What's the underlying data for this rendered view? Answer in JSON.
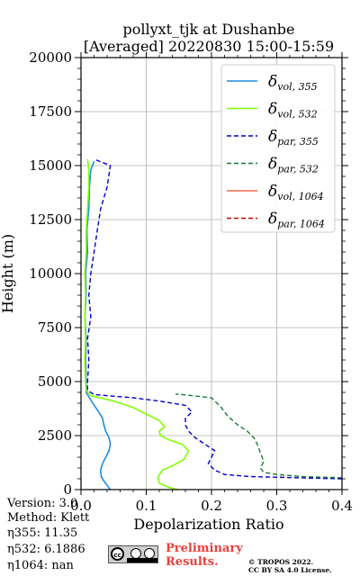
{
  "info": {
    "version": "Version: 3.0",
    "method": "Method: Klett",
    "eta355": "η355:  11.35",
    "eta532": "η532: 6.1886",
    "eta1064": "η1064:    nan"
  },
  "license": {
    "badge_label": "cc",
    "preliminary_line1": "Preliminary",
    "preliminary_line2": "Results.",
    "copyright_line1": "© TROPOS 2022.",
    "copyright_line2": "CC BY SA 4.0 License."
  },
  "chart_data": {
    "type": "line",
    "title": "pollyxt_tjk at Dushanbe",
    "subtitle": "[Averaged] 20220830 15:00-15:59",
    "xlabel": "Depolarization Ratio",
    "ylabel": "Height (m)",
    "xlim": [
      0,
      0.4
    ],
    "ylim": [
      0,
      20000
    ],
    "xticks": [
      0.0,
      0.1,
      0.2,
      0.3,
      0.4
    ],
    "xtick_labels": [
      "0.0",
      "0.1",
      "0.2",
      "0.3",
      "0.4"
    ],
    "yticks": [
      0,
      2500,
      5000,
      7500,
      10000,
      12500,
      15000,
      17500,
      20000
    ],
    "ytick_labels": [
      "0",
      "2500",
      "5000",
      "7500",
      "10000",
      "12500",
      "15000",
      "17500",
      "20000"
    ],
    "grid": true,
    "legend_position": "top-right",
    "series": [
      {
        "name": "δvol,355",
        "color": "#1f8ddf",
        "dash": "solid",
        "points": [
          [
            0.045,
            0
          ],
          [
            0.04,
            200
          ],
          [
            0.035,
            400
          ],
          [
            0.031,
            600
          ],
          [
            0.03,
            900
          ],
          [
            0.033,
            1200
          ],
          [
            0.038,
            1500
          ],
          [
            0.043,
            1800
          ],
          [
            0.045,
            2100
          ],
          [
            0.043,
            2400
          ],
          [
            0.038,
            2700
          ],
          [
            0.035,
            3000
          ],
          [
            0.033,
            3300
          ],
          [
            0.027,
            3600
          ],
          [
            0.018,
            4000
          ],
          [
            0.012,
            4300
          ],
          [
            0.008,
            4500
          ],
          [
            0.008,
            5000
          ],
          [
            0.007,
            6000
          ],
          [
            0.008,
            7000
          ],
          [
            0.006,
            8000
          ],
          [
            0.008,
            9000
          ],
          [
            0.007,
            10000
          ],
          [
            0.01,
            11000
          ],
          [
            0.009,
            12000
          ],
          [
            0.012,
            13000
          ],
          [
            0.013,
            14000
          ],
          [
            0.015,
            14800
          ],
          [
            0.02,
            15200
          ]
        ]
      },
      {
        "name": "δvol,532",
        "color": "#7fff00",
        "dash": "solid",
        "points": [
          [
            0.148,
            0
          ],
          [
            0.135,
            100
          ],
          [
            0.12,
            300
          ],
          [
            0.118,
            600
          ],
          [
            0.125,
            900
          ],
          [
            0.14,
            1100
          ],
          [
            0.158,
            1400
          ],
          [
            0.165,
            1800
          ],
          [
            0.155,
            2100
          ],
          [
            0.135,
            2300
          ],
          [
            0.122,
            2500
          ],
          [
            0.12,
            2700
          ],
          [
            0.128,
            2900
          ],
          [
            0.12,
            3200
          ],
          [
            0.1,
            3500
          ],
          [
            0.08,
            3800
          ],
          [
            0.05,
            4100
          ],
          [
            0.015,
            4350
          ],
          [
            0.008,
            4600
          ],
          [
            0.007,
            5000
          ],
          [
            0.006,
            6000
          ],
          [
            0.007,
            7000
          ],
          [
            0.006,
            8000
          ],
          [
            0.007,
            9000
          ],
          [
            0.006,
            10000
          ],
          [
            0.008,
            11000
          ],
          [
            0.008,
            12000
          ],
          [
            0.01,
            13000
          ],
          [
            0.012,
            14000
          ],
          [
            0.012,
            14800
          ],
          [
            0.01,
            15300
          ]
        ]
      },
      {
        "name": "δpar,355",
        "color": "#0000cc",
        "dash": "5,3",
        "points": [
          [
            0.4,
            500
          ],
          [
            0.33,
            550
          ],
          [
            0.26,
            600
          ],
          [
            0.22,
            700
          ],
          [
            0.205,
            900
          ],
          [
            0.195,
            1200
          ],
          [
            0.2,
            1500
          ],
          [
            0.205,
            1800
          ],
          [
            0.19,
            2100
          ],
          [
            0.175,
            2400
          ],
          [
            0.165,
            2700
          ],
          [
            0.16,
            3000
          ],
          [
            0.16,
            3300
          ],
          [
            0.17,
            3600
          ],
          [
            0.16,
            3900
          ],
          [
            0.12,
            4100
          ],
          [
            0.08,
            4250
          ],
          [
            0.02,
            4400
          ],
          [
            0.01,
            4600
          ],
          [
            0.01,
            5000
          ],
          [
            0.012,
            6000
          ],
          [
            0.01,
            7000
          ],
          [
            0.015,
            8000
          ],
          [
            0.012,
            9000
          ],
          [
            0.015,
            10000
          ],
          [
            0.02,
            11000
          ],
          [
            0.025,
            12000
          ],
          [
            0.03,
            13000
          ],
          [
            0.04,
            14000
          ],
          [
            0.045,
            15000
          ],
          [
            0.02,
            15300
          ]
        ]
      },
      {
        "name": "δpar,532",
        "color": "#1a7a3a",
        "dash": "5,3",
        "points": [
          [
            0.4,
            550
          ],
          [
            0.34,
            600
          ],
          [
            0.3,
            700
          ],
          [
            0.28,
            800
          ],
          [
            0.275,
            1000
          ],
          [
            0.28,
            1300
          ],
          [
            0.275,
            1700
          ],
          [
            0.27,
            2100
          ],
          [
            0.265,
            2400
          ],
          [
            0.255,
            2700
          ],
          [
            0.24,
            3000
          ],
          [
            0.225,
            3400
          ],
          [
            0.215,
            3800
          ],
          [
            0.2,
            4250
          ],
          [
            0.155,
            4400
          ],
          [
            0.145,
            4420
          ]
        ]
      },
      {
        "name": "δvol,1064",
        "color": "#f26a4f",
        "dash": "solid",
        "points": []
      },
      {
        "name": "δpar,1064",
        "color": "#cc0000",
        "dash": "5,3",
        "points": []
      }
    ],
    "legend": [
      {
        "base": "δ",
        "sub": "vol, 355"
      },
      {
        "base": "δ",
        "sub": "vol, 532"
      },
      {
        "base": "δ",
        "sub": "par, 355"
      },
      {
        "base": "δ",
        "sub": "par, 532"
      },
      {
        "base": "δ",
        "sub": "vol, 1064"
      },
      {
        "base": "δ",
        "sub": "par, 1064"
      }
    ]
  }
}
